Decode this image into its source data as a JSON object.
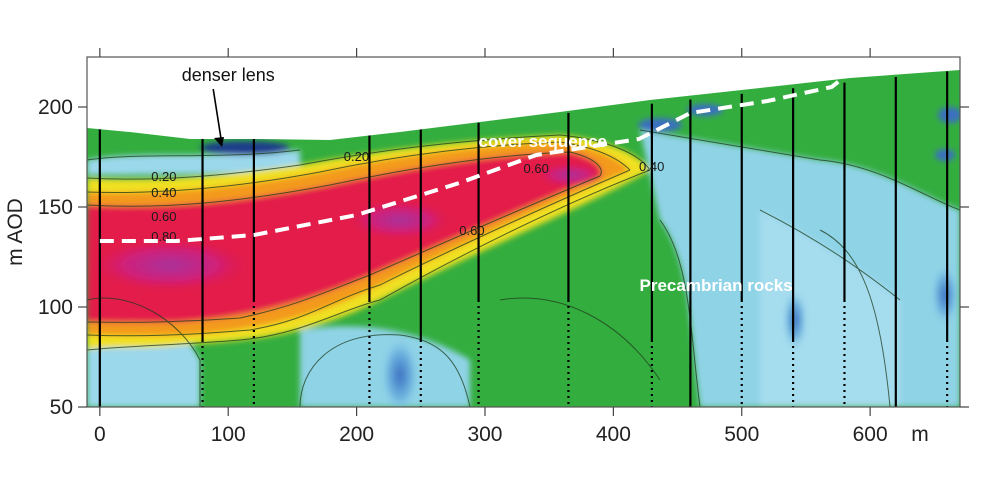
{
  "chart_data": {
    "type": "heatmap",
    "title": "",
    "xlabel": "m",
    "ylabel": "m AOD",
    "xlim": [
      -10,
      670
    ],
    "ylim": [
      50,
      225
    ],
    "x_ticks": [
      0,
      100,
      200,
      300,
      400,
      500,
      600
    ],
    "y_ticks": [
      50,
      100,
      150,
      200
    ],
    "grid": false,
    "colors": {
      "high": "#e31c48",
      "peak": "#d0207a",
      "mid_high": "#f5e020",
      "mid": "#2ea83c",
      "low": "#9bd8ec",
      "lowest": "#3a6fc0"
    },
    "contour_labels": [
      {
        "text": "0.20",
        "x": 190,
        "y": 173
      },
      {
        "text": "0.20",
        "x": 40,
        "y": 163
      },
      {
        "text": "0.40",
        "x": 40,
        "y": 155
      },
      {
        "text": "0.60",
        "x": 40,
        "y": 143
      },
      {
        "text": "0.80",
        "x": 40,
        "y": 133
      },
      {
        "text": "0.60",
        "x": 280,
        "y": 136
      },
      {
        "text": "0.60",
        "x": 330,
        "y": 167
      },
      {
        "text": "0.40",
        "x": 420,
        "y": 168
      }
    ],
    "series": [
      {
        "type": "boundary",
        "points": [
          [
            0,
            133
          ],
          [
            60,
            133
          ],
          [
            120,
            136
          ],
          [
            200,
            146
          ],
          [
            280,
            162
          ],
          [
            340,
            176
          ],
          [
            420,
            184
          ],
          [
            460,
            197
          ],
          [
            520,
            203
          ],
          [
            570,
            210
          ],
          [
            590,
            220
          ]
        ]
      }
    ],
    "boreholes_x": [
      0,
      80,
      120,
      210,
      250,
      295,
      365,
      430,
      460,
      500,
      540,
      580,
      620,
      660
    ],
    "annotations": [
      {
        "text": "denser lens",
        "x": 100,
        "y": 213
      },
      {
        "text": "cover sequence",
        "x": 345,
        "y": 180
      },
      {
        "text": "Precambrian rocks",
        "x": 480,
        "y": 108
      }
    ]
  }
}
